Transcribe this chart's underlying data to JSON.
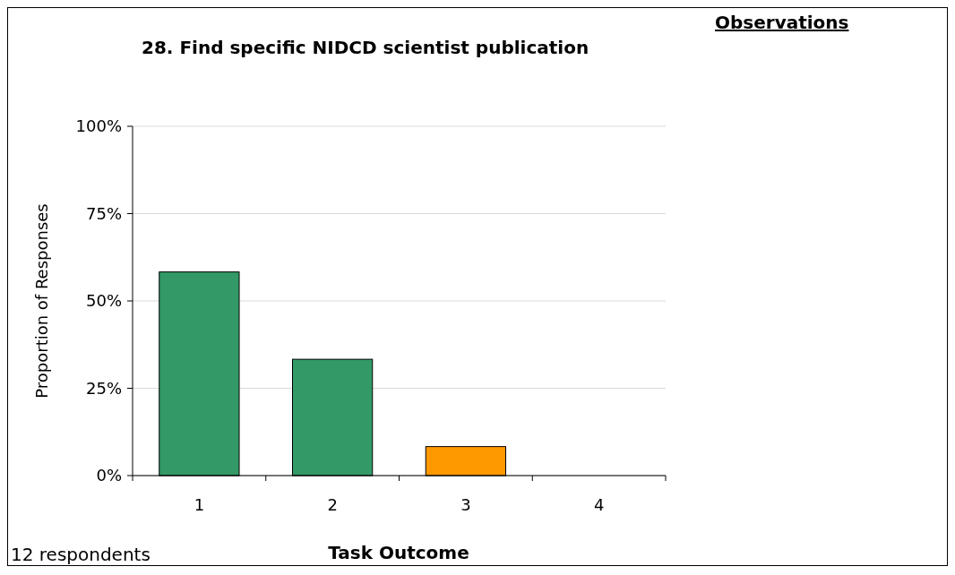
{
  "chart_data": {
    "type": "bar",
    "title": "28. Find specific NIDCD scientist publication",
    "xlabel": "Task Outcome",
    "ylabel": "Proportion of Responses",
    "categories": [
      "1",
      "2",
      "3",
      "4"
    ],
    "values": [
      58.3,
      33.3,
      8.3,
      0
    ],
    "colors": [
      "#339966",
      "#339966",
      "#ff9900",
      "#339966"
    ],
    "ylim": [
      0,
      100
    ],
    "yticks": [
      {
        "value": 0,
        "label": "0%"
      },
      {
        "value": 25,
        "label": "25%"
      },
      {
        "value": 50,
        "label": "50%"
      },
      {
        "value": 75,
        "label": "75%"
      },
      {
        "value": 100,
        "label": "100%"
      }
    ],
    "grid": "y",
    "annotations": [
      "Observations",
      "12 respondents"
    ]
  }
}
